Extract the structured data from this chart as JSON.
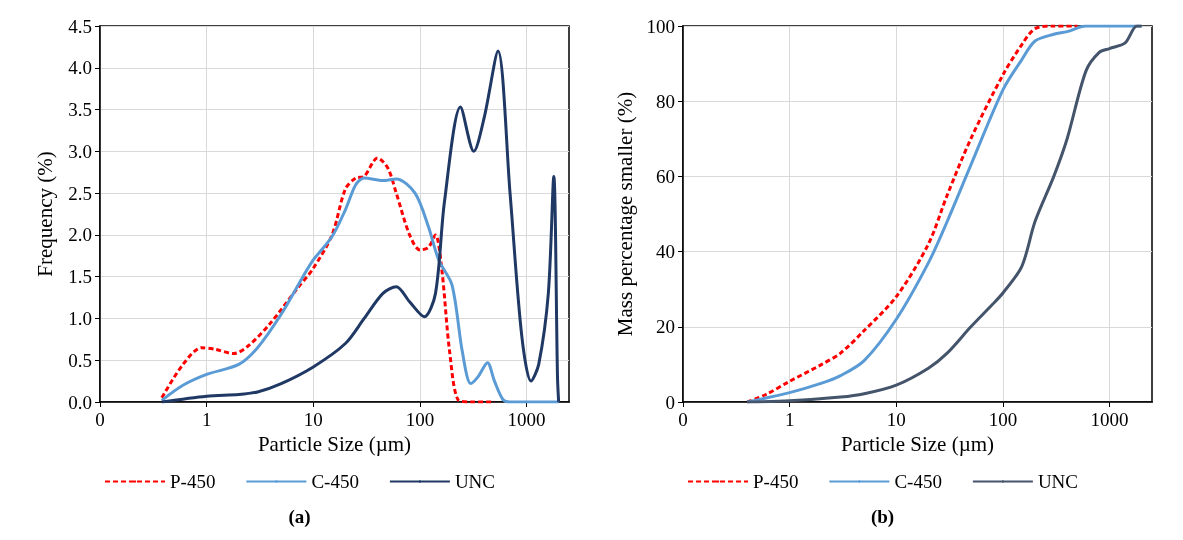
{
  "chart_data": [
    {
      "type": "line",
      "xlabel": "Particle Size (µm)",
      "ylabel": "Frequency (%)",
      "annotations": [
        "(a)"
      ],
      "log": "x",
      "grid": true,
      "legend": "bottom",
      "marker": "none",
      "xlim": [
        0.1,
        2500
      ],
      "xticks": [
        {
          "value": 0.1,
          "label": "0"
        },
        1,
        10,
        100,
        1000
      ],
      "ylim": [
        0,
        4.5
      ],
      "yticks": [
        {
          "value": 0,
          "label": "0.0"
        },
        0.5,
        {
          "value": 1,
          "label": "1.0"
        },
        1.5,
        {
          "value": 2,
          "label": "2.0"
        },
        2.5,
        {
          "value": 3,
          "label": "3.0"
        },
        3.5,
        {
          "value": 4,
          "label": "4.0"
        },
        4.5
      ],
      "series": [
        {
          "name": "P-450",
          "color": "#ff0000",
          "line_style": "dashed",
          "x": [
            0.38,
            0.6,
            0.9,
            1.2,
            1.8,
            2.5,
            4,
            7,
            10,
            15,
            20,
            25,
            30,
            40,
            50,
            60,
            80,
            100,
            120,
            140,
            160,
            190,
            230,
            300,
            500
          ],
          "values": [
            0.05,
            0.45,
            0.65,
            0.63,
            0.58,
            0.68,
            0.95,
            1.35,
            1.6,
            2.0,
            2.55,
            2.68,
            2.7,
            2.92,
            2.8,
            2.5,
            2.0,
            1.82,
            1.85,
            2.0,
            1.6,
            0.6,
            0.02,
            0,
            0
          ]
        },
        {
          "name": "C-450",
          "color": "#5b9bd5",
          "line_style": "solid",
          "x": [
            0.38,
            0.6,
            1,
            2,
            3,
            5,
            8,
            10,
            15,
            20,
            25,
            30,
            45,
            60,
            90,
            120,
            150,
            200,
            250,
            300,
            350,
            430,
            500,
            600,
            700,
            1000,
            2000
          ],
          "values": [
            0.02,
            0.2,
            0.33,
            0.45,
            0.65,
            1.05,
            1.5,
            1.7,
            1.98,
            2.3,
            2.6,
            2.68,
            2.65,
            2.67,
            2.5,
            2.1,
            1.7,
            1.4,
            0.6,
            0.22,
            0.3,
            0.47,
            0.25,
            0.03,
            0,
            0,
            0
          ]
        },
        {
          "name": "UNC",
          "color": "#1f3864",
          "line_style": "solid",
          "x": [
            0.38,
            1,
            2,
            3,
            5,
            10,
            20,
            30,
            45,
            60,
            80,
            110,
            140,
            170,
            240,
            320,
            400,
            540,
            700,
            900,
            1100,
            1300,
            1600,
            1800,
            1950,
            2000
          ],
          "values": [
            0,
            0.07,
            0.09,
            0.12,
            0.22,
            0.42,
            0.7,
            1.0,
            1.3,
            1.38,
            1.2,
            1.02,
            1.3,
            2.4,
            3.53,
            3.0,
            3.4,
            4.2,
            2.5,
            0.8,
            0.25,
            0.45,
            1.3,
            2.7,
            0.3,
            0
          ]
        }
      ]
    },
    {
      "type": "line",
      "xlabel": "Particle Size (µm)",
      "ylabel": "Mass percentage smaller (%)",
      "annotations": [
        "(b)"
      ],
      "log": "x",
      "grid": true,
      "legend": "bottom",
      "marker": "none",
      "xlim": [
        0.1,
        2500
      ],
      "xticks": [
        {
          "value": 0.1,
          "label": "0"
        },
        1,
        10,
        100,
        1000
      ],
      "ylim": [
        0,
        100
      ],
      "yticks": [
        0,
        20,
        40,
        60,
        80,
        100
      ],
      "series": [
        {
          "name": "P-450",
          "color": "#ff0000",
          "line_style": "dashed",
          "x": [
            0.4,
            0.6,
            1,
            2,
            3,
            5,
            10,
            20,
            30,
            50,
            100,
            150,
            200,
            300,
            500
          ],
          "values": [
            0,
            2,
            5.5,
            10,
            13,
            19,
            28,
            42,
            55,
            70,
            87,
            95,
            99.3,
            100,
            100
          ]
        },
        {
          "name": "C-450",
          "color": "#5b9bd5",
          "line_style": "solid",
          "x": [
            0.4,
            1,
            2,
            3,
            5,
            10,
            20,
            30,
            50,
            100,
            150,
            200,
            300,
            400,
            600,
            2000
          ],
          "values": [
            0,
            2.5,
            5,
            7,
            11,
            22,
            37,
            48,
            63,
            83,
            91,
            96,
            97.8,
            98.5,
            100,
            100
          ]
        },
        {
          "name": "UNC",
          "color": "#44546a",
          "line_style": "solid",
          "x": [
            0.4,
            1,
            3,
            5,
            10,
            20,
            30,
            50,
            80,
            100,
            150,
            200,
            300,
            400,
            600,
            800,
            1000,
            1400,
            1800,
            2000
          ],
          "values": [
            0,
            0.3,
            1.3,
            2.2,
            4.5,
            9,
            13,
            20,
            26,
            29,
            36,
            48,
            60,
            70,
            88,
            93,
            94,
            95.5,
            100,
            100
          ]
        }
      ]
    }
  ]
}
